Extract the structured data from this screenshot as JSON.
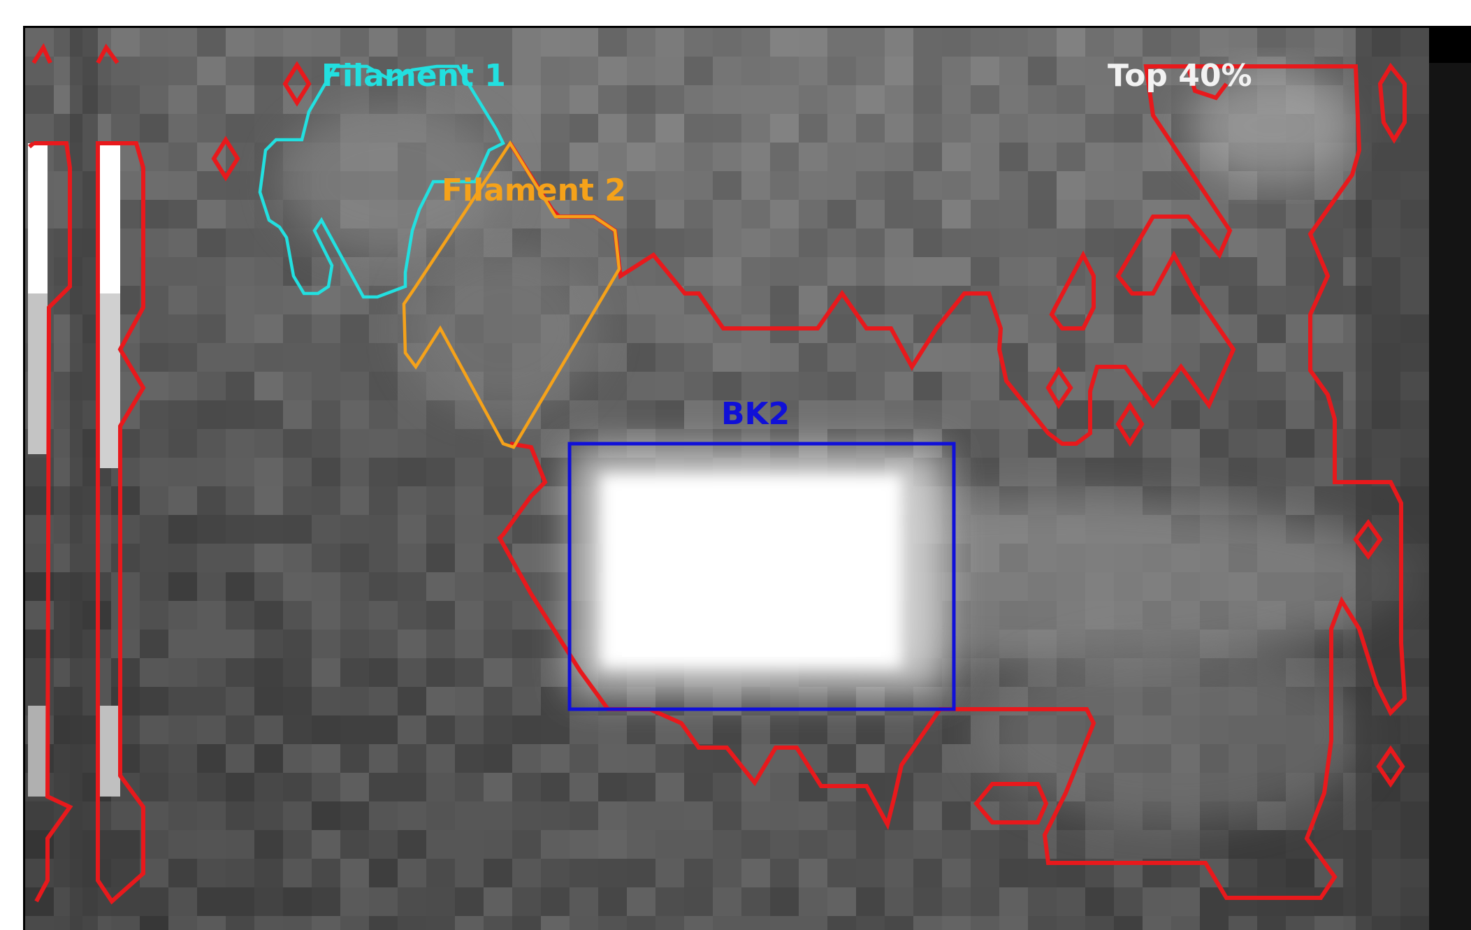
{
  "labels": {
    "filament1": "Filament 1",
    "filament2": "Filament 2",
    "bk2": "BK2",
    "threshold": "Top 40%"
  },
  "colors": {
    "filament1": "#22e0e0",
    "filament2": "#f5a21a",
    "bk2": "#1010d8",
    "threshold_contour": "#e8191c",
    "threshold_label": "#f2f2f2"
  }
}
